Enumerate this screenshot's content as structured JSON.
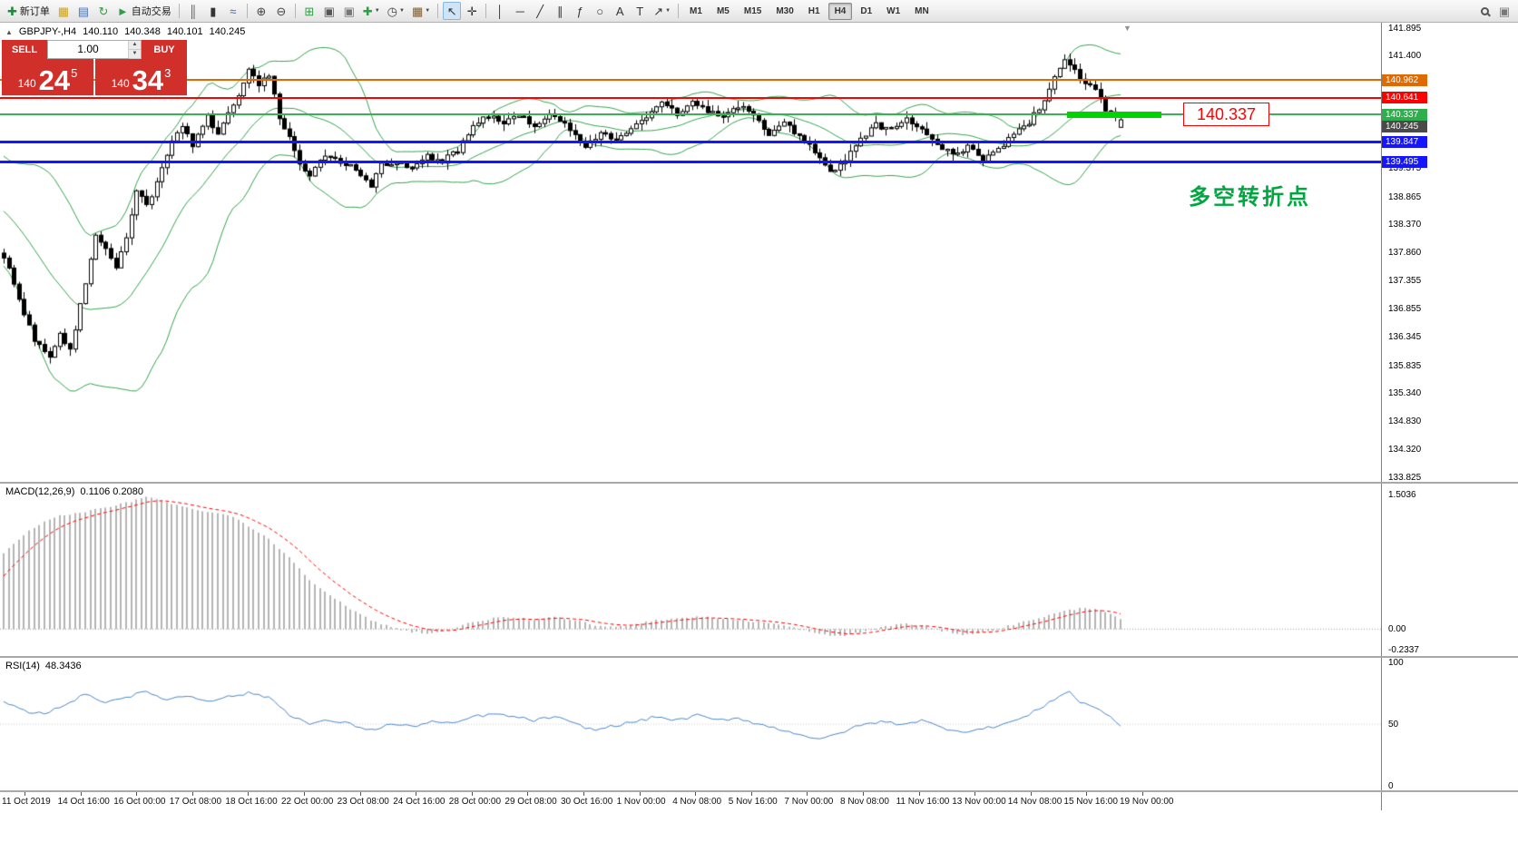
{
  "toolbar": {
    "items": [
      {
        "name": "new-order",
        "glyph": "✚",
        "color": "#1d8a3a",
        "label": "新订单"
      },
      {
        "name": "market-watch",
        "glyph": "▦",
        "color": "#c9a227"
      },
      {
        "name": "navigator",
        "glyph": "▤",
        "color": "#4a6fb3"
      },
      {
        "name": "refresh",
        "glyph": "↻",
        "color": "#2f9e44"
      },
      {
        "name": "autotrading",
        "glyph": "►",
        "color": "#2f9e44",
        "label": "自动交易"
      },
      {
        "sep": true
      },
      {
        "name": "bar-chart",
        "glyph": "║",
        "color": "#555555"
      },
      {
        "name": "candlestick-chart",
        "glyph": "▮",
        "color": "#333333"
      },
      {
        "name": "line-chart",
        "glyph": "≈",
        "color": "#3a6ea5"
      },
      {
        "sep": true
      },
      {
        "name": "zoom-in",
        "glyph": "⊕",
        "color": "#444444"
      },
      {
        "name": "zoom-out",
        "glyph": "⊖",
        "color": "#444444"
      },
      {
        "sep": true
      },
      {
        "name": "tile-windows",
        "glyph": "⊞",
        "color": "#2f9e44"
      },
      {
        "name": "cascade-windows",
        "glyph": "▣",
        "color": "#555555"
      },
      {
        "name": "arrange-windows",
        "glyph": "▣",
        "color": "#777777"
      },
      {
        "name": "indicators-add",
        "glyph": "✚",
        "color": "#2f9e44",
        "dropdown": true
      },
      {
        "name": "periods",
        "glyph": "◷",
        "color": "#444444",
        "dropdown": true
      },
      {
        "name": "templates",
        "glyph": "▦",
        "color": "#7a5c2e",
        "dropdown": true
      },
      {
        "sep": true
      },
      {
        "name": "cursor",
        "glyph": "↖",
        "color": "#333333",
        "pressed": true
      },
      {
        "name": "crosshair",
        "glyph": "✛",
        "color": "#333333"
      },
      {
        "sep": true
      },
      {
        "name": "vertical-line",
        "glyph": "│",
        "color": "#333333"
      },
      {
        "name": "horizontal-line",
        "glyph": "─",
        "color": "#333333"
      },
      {
        "name": "trendline",
        "glyph": "╱",
        "color": "#333333"
      },
      {
        "name": "channel",
        "glyph": "∥",
        "color": "#333333"
      },
      {
        "name": "fibonacci",
        "glyph": "ƒ",
        "color": "#333333"
      },
      {
        "name": "shapes",
        "glyph": "○",
        "color": "#333333"
      },
      {
        "name": "text",
        "glyph": "A",
        "color": "#333333"
      },
      {
        "name": "text-label",
        "glyph": "T",
        "color": "#333333"
      },
      {
        "name": "arrows",
        "glyph": "↗",
        "color": "#333333",
        "dropdown": true
      },
      {
        "sep": true
      }
    ],
    "right_items": [
      {
        "name": "community",
        "glyph": "▣",
        "color": "#777777"
      }
    ],
    "timeframes": [
      "M1",
      "M5",
      "M15",
      "M30",
      "H1",
      "H4",
      "D1",
      "W1",
      "MN"
    ],
    "active_timeframe": "H4"
  },
  "icons": {
    "dropdown": "▼",
    "expand_triangle": "▲",
    "spinner_up": "▲",
    "spinner_down": "▼",
    "shift_marker": "▼"
  },
  "chart": {
    "header": {
      "symbol": "GBPJPY-,H4",
      "open": "140.110",
      "high": "140.348",
      "low": "140.101",
      "close": "140.245"
    },
    "trade_panel": {
      "sell_label": "SELL",
      "buy_label": "BUY",
      "volume": "1.00",
      "sell_price_small": "140",
      "sell_price_big": "24",
      "sell_price_sup": "5",
      "buy_price_small": "140",
      "buy_price_big": "34",
      "buy_price_sup": "3"
    },
    "annotations": {
      "price_callout": "140.337",
      "note": "多空转折点"
    },
    "hlines": [
      {
        "price": 140.962,
        "color": "#e06a00",
        "thickness": 2
      },
      {
        "price": 140.641,
        "color": "#ff0000",
        "thickness": 2
      },
      {
        "price": 140.337,
        "color": "#3cb054",
        "thickness": 2
      },
      {
        "price": 139.847,
        "color": "#1515ff",
        "thickness": 3
      },
      {
        "price": 139.495,
        "color": "#1515ff",
        "thickness": 3
      }
    ],
    "trade_line": {
      "price": 140.337,
      "x": 1176,
      "width": 104,
      "thickness": 7,
      "color": "#00d400"
    },
    "price_scale": {
      "tags": [
        {
          "text": "140.962",
          "color": "#e06a00"
        },
        {
          "text": "140.641",
          "color": "#ff0000"
        },
        {
          "text": "140.337",
          "color": "#2fae4e",
          "z": 3
        },
        {
          "text": "140.245",
          "color": "#4a4a4a",
          "dy": 7,
          "z": 2
        },
        {
          "text": "139.847",
          "color": "#1515ff"
        },
        {
          "text": "139.495",
          "color": "#1515ff"
        }
      ]
    }
  },
  "indicators": {
    "macd": {
      "label": "MACD(12,26,9)",
      "values": "0.1106 0.2080",
      "scale": [
        {
          "text": "1.5036",
          "value": 1.5036
        },
        {
          "text": "0.00",
          "value": 0
        },
        {
          "text": "-0.2337",
          "value": -0.2337
        }
      ]
    },
    "rsi": {
      "label": "RSI(14)",
      "value": "48.3436",
      "scale": [
        {
          "text": "100",
          "value": 100
        },
        {
          "text": "50",
          "value": 50
        },
        {
          "text": "0",
          "value": 0
        }
      ]
    }
  },
  "chart_data": {
    "type": "candlestick",
    "symbol": "GBPJPY",
    "timeframe": "H4",
    "ohlc_current": {
      "open": 140.11,
      "high": 140.348,
      "low": 140.101,
      "close": 140.245
    },
    "ylim": [
      133.74,
      141.99
    ],
    "candles": 220,
    "bollinger": {
      "period": 20,
      "deviation": 2
    },
    "close_anchors": [
      [
        0,
        137.8
      ],
      [
        3,
        137.0
      ],
      [
        6,
        136.3
      ],
      [
        9,
        135.95
      ],
      [
        11,
        136.4
      ],
      [
        13,
        136.1
      ],
      [
        16,
        137.3
      ],
      [
        18,
        138.2
      ],
      [
        20,
        137.9
      ],
      [
        22,
        137.6
      ],
      [
        24,
        138.1
      ],
      [
        26,
        139.0
      ],
      [
        28,
        138.7
      ],
      [
        30,
        139.1
      ],
      [
        33,
        139.9
      ],
      [
        35,
        140.15
      ],
      [
        37,
        139.8
      ],
      [
        40,
        140.3
      ],
      [
        42,
        140.0
      ],
      [
        44,
        140.4
      ],
      [
        46,
        140.7
      ],
      [
        48,
        141.2
      ],
      [
        50,
        140.9
      ],
      [
        52,
        141.05
      ],
      [
        54,
        140.3
      ],
      [
        56,
        139.9
      ],
      [
        58,
        139.45
      ],
      [
        60,
        139.25
      ],
      [
        63,
        139.6
      ],
      [
        66,
        139.5
      ],
      [
        69,
        139.35
      ],
      [
        72,
        139.05
      ],
      [
        74,
        139.45
      ],
      [
        77,
        139.5
      ],
      [
        80,
        139.35
      ],
      [
        83,
        139.6
      ],
      [
        86,
        139.5
      ],
      [
        89,
        139.7
      ],
      [
        92,
        140.15
      ],
      [
        95,
        140.3
      ],
      [
        98,
        140.2
      ],
      [
        101,
        140.35
      ],
      [
        104,
        140.1
      ],
      [
        107,
        140.3
      ],
      [
        110,
        140.2
      ],
      [
        112,
        140.0
      ],
      [
        114,
        139.75
      ],
      [
        117,
        140.0
      ],
      [
        120,
        139.9
      ],
      [
        123,
        140.1
      ],
      [
        126,
        140.3
      ],
      [
        129,
        140.55
      ],
      [
        132,
        140.35
      ],
      [
        135,
        140.6
      ],
      [
        138,
        140.4
      ],
      [
        141,
        140.25
      ],
      [
        144,
        140.5
      ],
      [
        147,
        140.3
      ],
      [
        150,
        140.0
      ],
      [
        153,
        140.2
      ],
      [
        156,
        139.95
      ],
      [
        159,
        139.7
      ],
      [
        162,
        139.3
      ],
      [
        165,
        139.55
      ],
      [
        168,
        139.9
      ],
      [
        171,
        140.15
      ],
      [
        174,
        140.05
      ],
      [
        177,
        140.25
      ],
      [
        180,
        140.1
      ],
      [
        183,
        139.8
      ],
      [
        186,
        139.6
      ],
      [
        189,
        139.75
      ],
      [
        192,
        139.55
      ],
      [
        195,
        139.7
      ],
      [
        198,
        140.0
      ],
      [
        201,
        140.2
      ],
      [
        204,
        140.6
      ],
      [
        206,
        141.0
      ],
      [
        208,
        141.35
      ],
      [
        210,
        141.1
      ],
      [
        212,
        140.9
      ],
      [
        214,
        140.75
      ],
      [
        216,
        140.45
      ],
      [
        218,
        140.3
      ],
      [
        219,
        140.245
      ]
    ],
    "macd": {
      "params": [
        12,
        26,
        9
      ],
      "ylim": [
        -0.3,
        1.62
      ],
      "anchors": [
        [
          0,
          0.85
        ],
        [
          5,
          1.1
        ],
        [
          10,
          1.25
        ],
        [
          15,
          1.3
        ],
        [
          20,
          1.35
        ],
        [
          25,
          1.42
        ],
        [
          28,
          1.47
        ],
        [
          31,
          1.44
        ],
        [
          34,
          1.38
        ],
        [
          38,
          1.32
        ],
        [
          42,
          1.3
        ],
        [
          45,
          1.25
        ],
        [
          48,
          1.15
        ],
        [
          52,
          1.0
        ],
        [
          56,
          0.8
        ],
        [
          60,
          0.55
        ],
        [
          64,
          0.38
        ],
        [
          68,
          0.22
        ],
        [
          72,
          0.1
        ],
        [
          76,
          0.02
        ],
        [
          80,
          -0.03
        ],
        [
          84,
          -0.05
        ],
        [
          88,
          0.0
        ],
        [
          92,
          0.08
        ],
        [
          96,
          0.12
        ],
        [
          100,
          0.13
        ],
        [
          104,
          0.1
        ],
        [
          108,
          0.13
        ],
        [
          112,
          0.1
        ],
        [
          116,
          0.04
        ],
        [
          120,
          0.02
        ],
        [
          124,
          0.06
        ],
        [
          128,
          0.1
        ],
        [
          132,
          0.12
        ],
        [
          136,
          0.14
        ],
        [
          140,
          0.12
        ],
        [
          144,
          0.1
        ],
        [
          148,
          0.08
        ],
        [
          152,
          0.05
        ],
        [
          156,
          0.0
        ],
        [
          160,
          -0.06
        ],
        [
          164,
          -0.08
        ],
        [
          168,
          -0.04
        ],
        [
          172,
          0.02
        ],
        [
          176,
          0.06
        ],
        [
          180,
          0.04
        ],
        [
          184,
          -0.02
        ],
        [
          188,
          -0.06
        ],
        [
          192,
          -0.04
        ],
        [
          196,
          0.02
        ],
        [
          200,
          0.08
        ],
        [
          204,
          0.14
        ],
        [
          208,
          0.2
        ],
        [
          212,
          0.24
        ],
        [
          215,
          0.22
        ],
        [
          217,
          0.16
        ],
        [
          219,
          0.11
        ]
      ]
    },
    "rsi": {
      "period": 14,
      "ylim": [
        0,
        100
      ],
      "anchors": [
        [
          0,
          68
        ],
        [
          3,
          62
        ],
        [
          6,
          58
        ],
        [
          9,
          60
        ],
        [
          12,
          66
        ],
        [
          16,
          74
        ],
        [
          20,
          68
        ],
        [
          24,
          72
        ],
        [
          28,
          76
        ],
        [
          32,
          70
        ],
        [
          36,
          73
        ],
        [
          40,
          69
        ],
        [
          44,
          72
        ],
        [
          48,
          75
        ],
        [
          52,
          72
        ],
        [
          56,
          58
        ],
        [
          60,
          50
        ],
        [
          64,
          53
        ],
        [
          68,
          50
        ],
        [
          72,
          45
        ],
        [
          76,
          50
        ],
        [
          80,
          48
        ],
        [
          84,
          52
        ],
        [
          88,
          50
        ],
        [
          92,
          56
        ],
        [
          96,
          58
        ],
        [
          100,
          56
        ],
        [
          104,
          53
        ],
        [
          108,
          56
        ],
        [
          112,
          50
        ],
        [
          116,
          45
        ],
        [
          120,
          49
        ],
        [
          124,
          52
        ],
        [
          128,
          56
        ],
        [
          132,
          53
        ],
        [
          136,
          57
        ],
        [
          140,
          53
        ],
        [
          144,
          55
        ],
        [
          148,
          50
        ],
        [
          152,
          46
        ],
        [
          156,
          42
        ],
        [
          160,
          37
        ],
        [
          164,
          43
        ],
        [
          168,
          49
        ],
        [
          172,
          52
        ],
        [
          176,
          50
        ],
        [
          180,
          53
        ],
        [
          184,
          47
        ],
        [
          188,
          44
        ],
        [
          192,
          46
        ],
        [
          196,
          50
        ],
        [
          200,
          55
        ],
        [
          204,
          65
        ],
        [
          207,
          73
        ],
        [
          209,
          76
        ],
        [
          211,
          68
        ],
        [
          213,
          65
        ],
        [
          215,
          62
        ],
        [
          217,
          55
        ],
        [
          219,
          48.34
        ]
      ]
    },
    "y_ticks": [
      "141.895",
      "141.400",
      "139.375",
      "138.865",
      "138.370",
      "137.860",
      "137.355",
      "136.855",
      "136.345",
      "135.835",
      "135.340",
      "134.830",
      "134.320",
      "133.825"
    ],
    "x_labels": [
      "11 Oct 2019",
      "14 Oct 16:00",
      "16 Oct 00:00",
      "17 Oct 08:00",
      "18 Oct 16:00",
      "22 Oct 00:00",
      "23 Oct 08:00",
      "24 Oct 16:00",
      "28 Oct 00:00",
      "29 Oct 08:00",
      "30 Oct 16:00",
      "1 Nov 00:00",
      "4 Nov 08:00",
      "5 Nov 16:00",
      "7 Nov 00:00",
      "8 Nov 08:00",
      "11 Nov 16:00",
      "13 Nov 00:00",
      "14 Nov 08:00",
      "15 Nov 16:00",
      "19 Nov 00:00"
    ]
  },
  "colors": {
    "bollinger": "#33a34c",
    "macd_hist": "#b5b5b5",
    "macd_signal": "#ff0000",
    "rsi": "#4a86c8",
    "trade_red": "#d12f2a",
    "note": "#00a63f",
    "callout": "#ff0000",
    "bull": "#ffffff",
    "bear": "#000000",
    "candle_outline": "#000000"
  }
}
